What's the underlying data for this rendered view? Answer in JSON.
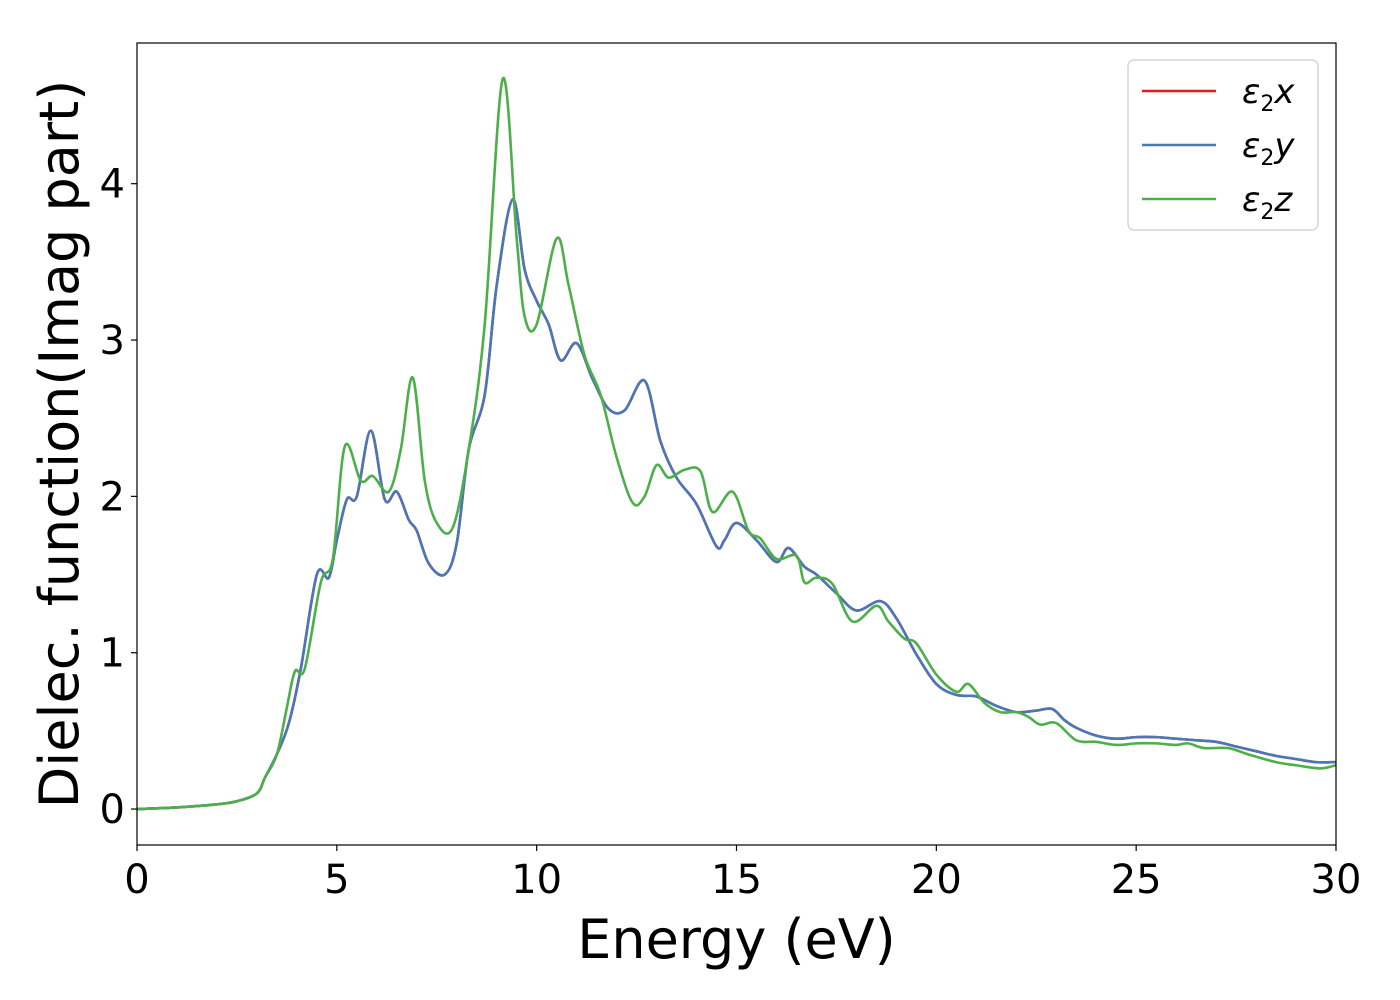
{
  "chart_data": {
    "type": "line",
    "xlabel": "Energy (eV)",
    "ylabel": "Dielec. function(Imag part)",
    "xlim": [
      0,
      30
    ],
    "ylim": [
      -0.23,
      4.9
    ],
    "xticks": [
      0,
      5,
      10,
      15,
      20,
      25,
      30
    ],
    "yticks": [
      0,
      1,
      2,
      3,
      4
    ],
    "grid": false,
    "legend": {
      "placement": "top-right"
    },
    "series": [
      {
        "name": "ε2x",
        "symbol": "ε",
        "sub": "2",
        "suffix": "x",
        "color": "#e41a1c",
        "x": [
          0,
          1,
          2,
          2.5,
          3,
          3.2,
          3.5,
          3.8,
          4.1,
          4.5,
          4.8,
          5.0,
          5.25,
          5.5,
          5.85,
          6.2,
          6.5,
          6.8,
          7.0,
          7.3,
          7.7,
          8.0,
          8.3,
          8.7,
          9.0,
          9.4,
          9.7,
          10.0,
          10.3,
          10.6,
          11.0,
          11.4,
          11.8,
          12.2,
          12.7,
          13.1,
          13.5,
          14.0,
          14.5,
          14.7,
          15.0,
          15.5,
          16.0,
          16.3,
          16.7,
          17.0,
          17.5,
          18.0,
          18.6,
          19.0,
          19.5,
          20.0,
          20.5,
          21.0,
          21.5,
          22.0,
          22.5,
          22.9,
          23.2,
          23.5,
          24.0,
          24.5,
          25.0,
          25.5,
          26.0,
          26.5,
          27.0,
          27.5,
          28.0,
          28.5,
          29.0,
          29.5,
          30.0
        ],
        "y": [
          0,
          0.01,
          0.03,
          0.05,
          0.1,
          0.2,
          0.35,
          0.55,
          0.9,
          1.5,
          1.48,
          1.72,
          1.98,
          2.0,
          2.42,
          1.98,
          2.03,
          1.85,
          1.78,
          1.57,
          1.5,
          1.7,
          2.3,
          2.65,
          3.35,
          3.9,
          3.45,
          3.25,
          3.1,
          2.87,
          2.98,
          2.75,
          2.56,
          2.55,
          2.74,
          2.35,
          2.12,
          1.95,
          1.68,
          1.72,
          1.83,
          1.72,
          1.58,
          1.67,
          1.55,
          1.5,
          1.38,
          1.27,
          1.33,
          1.22,
          0.99,
          0.8,
          0.73,
          0.72,
          0.66,
          0.62,
          0.63,
          0.64,
          0.57,
          0.52,
          0.47,
          0.45,
          0.46,
          0.46,
          0.45,
          0.44,
          0.43,
          0.4,
          0.37,
          0.34,
          0.32,
          0.3,
          0.3
        ]
      },
      {
        "name": "ε2y",
        "symbol": "ε",
        "sub": "2",
        "suffix": "y",
        "color": "#4878b8",
        "x": [
          0,
          1,
          2,
          2.5,
          3,
          3.2,
          3.5,
          3.8,
          4.1,
          4.5,
          4.8,
          5.0,
          5.25,
          5.5,
          5.85,
          6.2,
          6.5,
          6.8,
          7.0,
          7.3,
          7.7,
          8.0,
          8.3,
          8.7,
          9.0,
          9.4,
          9.7,
          10.0,
          10.3,
          10.6,
          11.0,
          11.4,
          11.8,
          12.2,
          12.7,
          13.1,
          13.5,
          14.0,
          14.5,
          14.7,
          15.0,
          15.5,
          16.0,
          16.3,
          16.7,
          17.0,
          17.5,
          18.0,
          18.6,
          19.0,
          19.5,
          20.0,
          20.5,
          21.0,
          21.5,
          22.0,
          22.5,
          22.9,
          23.2,
          23.5,
          24.0,
          24.5,
          25.0,
          25.5,
          26.0,
          26.5,
          27.0,
          27.5,
          28.0,
          28.5,
          29.0,
          29.5,
          30.0
        ],
        "y": [
          0,
          0.01,
          0.03,
          0.05,
          0.1,
          0.2,
          0.35,
          0.55,
          0.9,
          1.5,
          1.48,
          1.72,
          1.98,
          2.0,
          2.42,
          1.98,
          2.03,
          1.85,
          1.78,
          1.57,
          1.5,
          1.7,
          2.3,
          2.65,
          3.35,
          3.9,
          3.45,
          3.25,
          3.1,
          2.87,
          2.98,
          2.75,
          2.56,
          2.55,
          2.74,
          2.35,
          2.12,
          1.95,
          1.68,
          1.72,
          1.83,
          1.72,
          1.58,
          1.67,
          1.55,
          1.5,
          1.38,
          1.27,
          1.33,
          1.22,
          0.99,
          0.8,
          0.73,
          0.72,
          0.66,
          0.62,
          0.63,
          0.64,
          0.57,
          0.52,
          0.47,
          0.45,
          0.46,
          0.46,
          0.45,
          0.44,
          0.43,
          0.4,
          0.37,
          0.34,
          0.32,
          0.3,
          0.3
        ]
      },
      {
        "name": "ε2z",
        "symbol": "ε",
        "sub": "2",
        "suffix": "z",
        "color": "#4daf4a",
        "x": [
          0,
          1,
          2,
          2.5,
          3,
          3.2,
          3.5,
          3.75,
          3.95,
          4.2,
          4.6,
          4.9,
          5.2,
          5.6,
          5.9,
          6.3,
          6.6,
          6.9,
          7.2,
          7.5,
          7.9,
          8.3,
          8.7,
          9.15,
          9.5,
          9.7,
          10.0,
          10.5,
          10.8,
          11.2,
          11.6,
          12.0,
          12.4,
          12.7,
          13.0,
          13.3,
          13.7,
          14.1,
          14.4,
          14.9,
          15.3,
          15.6,
          16.0,
          16.5,
          16.7,
          17.0,
          17.4,
          17.9,
          18.5,
          18.8,
          19.2,
          19.5,
          20.0,
          20.5,
          20.8,
          21.2,
          21.6,
          22.0,
          22.3,
          22.6,
          23.0,
          23.5,
          24.0,
          24.5,
          25.0,
          25.5,
          26.0,
          26.3,
          26.7,
          27.3,
          27.8,
          28.5,
          29.0,
          29.6,
          30.0
        ],
        "y": [
          0,
          0.01,
          0.03,
          0.05,
          0.1,
          0.2,
          0.35,
          0.65,
          0.88,
          0.9,
          1.45,
          1.6,
          2.32,
          2.1,
          2.13,
          2.03,
          2.3,
          2.76,
          2.1,
          1.83,
          1.8,
          2.3,
          3.1,
          4.67,
          3.65,
          3.15,
          3.1,
          3.65,
          3.35,
          2.9,
          2.65,
          2.25,
          1.96,
          2.0,
          2.2,
          2.12,
          2.17,
          2.16,
          1.9,
          2.03,
          1.78,
          1.73,
          1.6,
          1.62,
          1.45,
          1.48,
          1.44,
          1.2,
          1.3,
          1.2,
          1.09,
          1.06,
          0.86,
          0.75,
          0.8,
          0.68,
          0.62,
          0.62,
          0.59,
          0.54,
          0.55,
          0.44,
          0.43,
          0.41,
          0.42,
          0.42,
          0.41,
          0.42,
          0.39,
          0.39,
          0.35,
          0.3,
          0.28,
          0.26,
          0.28
        ]
      }
    ]
  }
}
